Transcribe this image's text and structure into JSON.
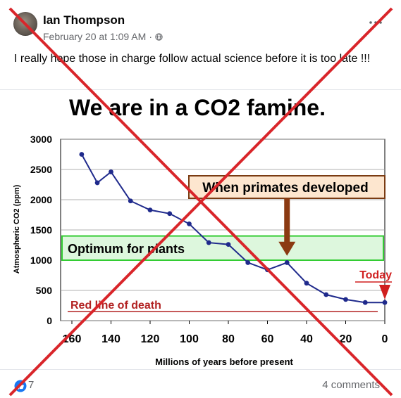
{
  "post": {
    "author": "Ian Thompson",
    "timestamp": "February 20 at 1:09 AM",
    "separator": "·",
    "privacy_icon": "globe-icon",
    "more_icon": "more-options-icon",
    "text": "I really hope those in charge follow actual science before it is too late !!!"
  },
  "chart_data": {
    "type": "line",
    "title": "We are in a CO2 famine.",
    "xlabel": "Millions of years before present",
    "ylabel": "Atmospheric CO2 (ppm)",
    "xlim": [
      160,
      0
    ],
    "ylim": [
      0,
      3000
    ],
    "x_reversed": true,
    "x_ticks": [
      160,
      140,
      120,
      100,
      80,
      60,
      40,
      20,
      0
    ],
    "y_ticks": [
      0,
      500,
      1000,
      1500,
      2000,
      2500,
      3000
    ],
    "grid": true,
    "series": [
      {
        "values": [
          {
            "x": 155,
            "y": 2750
          },
          {
            "x": 147,
            "y": 2280
          },
          {
            "x": 140,
            "y": 2460
          },
          {
            "x": 130,
            "y": 1980
          },
          {
            "x": 120,
            "y": 1830
          },
          {
            "x": 110,
            "y": 1770
          },
          {
            "x": 100,
            "y": 1600
          },
          {
            "x": 90,
            "y": 1290
          },
          {
            "x": 80,
            "y": 1260
          },
          {
            "x": 70,
            "y": 960
          },
          {
            "x": 60,
            "y": 840
          },
          {
            "x": 50,
            "y": 960
          },
          {
            "x": 40,
            "y": 620
          },
          {
            "x": 30,
            "y": 430
          },
          {
            "x": 20,
            "y": 350
          },
          {
            "x": 10,
            "y": 300
          },
          {
            "x": 0,
            "y": 300
          }
        ]
      }
    ],
    "annotations": {
      "optimum_band": {
        "label": "Optimum for plants",
        "y_from": 1000,
        "y_to": 1400,
        "color": "#33cc33"
      },
      "primates": {
        "label": "When primates developed",
        "x": 50
      },
      "today": {
        "label": "Today",
        "x": 0
      },
      "death_line": {
        "label": "Red line of death",
        "y": 150,
        "color": "#b22222"
      }
    },
    "line_color": "#1f2a8c"
  },
  "footer": {
    "like_icon": "like-thumb-icon",
    "likes": "7",
    "comments": "4 comments"
  },
  "overlay": {
    "cross_color": "#d9252a"
  }
}
